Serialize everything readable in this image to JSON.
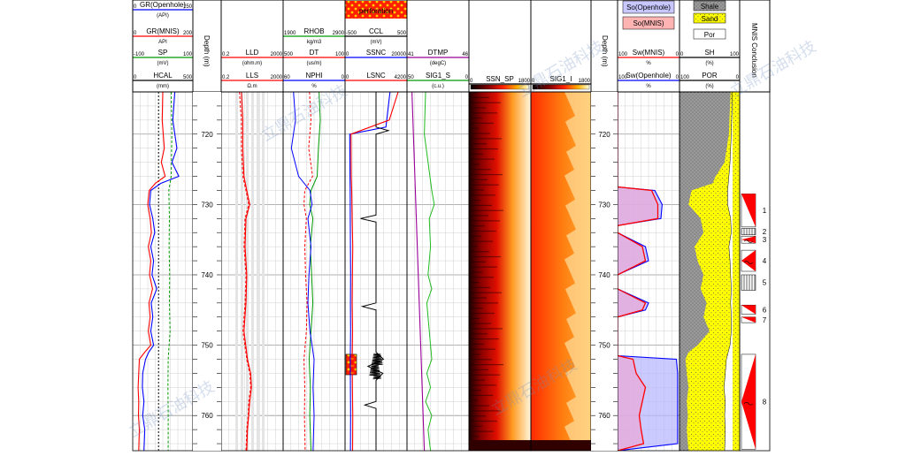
{
  "chart_data": {
    "type": "well-log",
    "depth_unit": "Depth (m)",
    "depth_range": [
      714,
      765
    ],
    "depth_ticks": [
      720,
      730,
      740,
      750,
      760
    ],
    "watermark": "立鼎石油科技",
    "tracks": [
      {
        "id": "t1",
        "headers": [
          {
            "name": "GR(Openhole)",
            "unit": "(API)",
            "min": "0",
            "max": "150",
            "color": "#0000ff"
          },
          {
            "name": "GR(MNIS)",
            "unit": "API",
            "min": "0",
            "max": "200",
            "color": "#ff0000"
          },
          {
            "name": "SP",
            "unit": "(mV)",
            "min": "-100",
            "max": "100",
            "color": "#009900"
          },
          {
            "name": "HCAL",
            "unit": "(mm)",
            "min": "0",
            "max": "500",
            "color": "#000000"
          }
        ]
      },
      {
        "id": "t3",
        "headers": [
          {
            "name": "LLD",
            "unit": "(ohm.m)",
            "min": "0.2",
            "max": "2000",
            "color": "#ff0000"
          },
          {
            "name": "LLS",
            "unit": "Ω.m",
            "min": "0.2",
            "max": "2000",
            "color": "#ff0000"
          }
        ]
      },
      {
        "id": "t4",
        "headers": [
          {
            "name": "RHOB",
            "unit": "kg/m3",
            "min": "1900",
            "max": "2900",
            "color": "#009900"
          },
          {
            "name": "DT",
            "unit": "(us/m)",
            "min": "500",
            "max": "100",
            "color": "#ff0000"
          },
          {
            "name": "NPHI",
            "unit": "%",
            "min": "60",
            "max": "0",
            "color": "#0000ff"
          }
        ]
      },
      {
        "id": "t5",
        "headers": [
          {
            "name": "perforation",
            "unit": "",
            "min": "",
            "max": "",
            "color": "#000000"
          },
          {
            "name": "CCL",
            "unit": "(mV)",
            "min": "-500",
            "max": "500",
            "color": "#000000"
          },
          {
            "name": "SSNC",
            "unit": "",
            "min": "0",
            "max": "20000",
            "color": "#0000ff"
          },
          {
            "name": "LSNC",
            "unit": "",
            "min": "0",
            "max": "4200",
            "color": "#ff0000"
          }
        ]
      },
      {
        "id": "t6",
        "headers": [
          {
            "name": "DTMP",
            "unit": "(degC)",
            "min": "41",
            "max": "46",
            "color": "#990099"
          },
          {
            "name": "SIG1_S",
            "unit": "(c.u.)",
            "min": "50",
            "max": "0",
            "color": "#009900"
          }
        ]
      },
      {
        "id": "t7",
        "headers": [
          {
            "name": "SSN_SP",
            "unit": "",
            "min": "0",
            "max": "1800",
            "color": "#000000"
          }
        ]
      },
      {
        "id": "t8",
        "headers": [
          {
            "name": "SIG1_I",
            "unit": "",
            "min": "0",
            "max": "1800",
            "color": "#000000"
          }
        ]
      },
      {
        "id": "t10",
        "headers": [
          {
            "name": "So(Openhole)",
            "unit": "",
            "min": "",
            "max": "",
            "color": "#c8c8ff"
          },
          {
            "name": "So(MNIS)",
            "unit": "",
            "min": "",
            "max": "",
            "color": "#ffb4b4"
          },
          {
            "name": "Sw(MNIS)",
            "unit": "%",
            "min": "100",
            "max": "0",
            "color": "#ff0000"
          },
          {
            "name": "Sw(Openhole)",
            "unit": "%",
            "min": "100",
            "max": "0",
            "color": "#0000ff"
          }
        ]
      },
      {
        "id": "t11",
        "headers": [
          {
            "name": "Shale",
            "unit": "",
            "min": "",
            "max": "",
            "color": "#808080"
          },
          {
            "name": "Sand",
            "unit": "",
            "min": "",
            "max": "",
            "color": "#ffff00"
          },
          {
            "name": "Por",
            "unit": "",
            "min": "",
            "max": "",
            "color": "#ffffff"
          },
          {
            "name": "SH",
            "unit": "(%)",
            "min": "0",
            "max": "100",
            "color": "#000000"
          },
          {
            "name": "POR",
            "unit": "(%)",
            "min": "100",
            "max": "0",
            "color": "#000000"
          }
        ]
      },
      {
        "id": "t12",
        "headers": [
          {
            "name": "MNIS Conclusion",
            "unit": "",
            "min": "",
            "max": "",
            "color": "#000000"
          }
        ]
      }
    ],
    "conclusion_zones": [
      {
        "label": "1",
        "top": 728.5,
        "bottom": 733.2,
        "type": "oil"
      },
      {
        "label": "2",
        "top": 733.4,
        "bottom": 734.3,
        "type": "dry"
      },
      {
        "label": "3",
        "top": 734.5,
        "bottom": 735.5,
        "type": "oil-water"
      },
      {
        "label": "4",
        "top": 736.5,
        "bottom": 739.5,
        "type": "oil-water"
      },
      {
        "label": "5",
        "top": 740.0,
        "bottom": 742.2,
        "type": "dry"
      },
      {
        "label": "6",
        "top": 744.3,
        "bottom": 745.6,
        "type": "oil"
      },
      {
        "label": "7",
        "top": 746.0,
        "bottom": 746.8,
        "type": "oil"
      },
      {
        "label": "8",
        "top": 751.3,
        "bottom": 764.8,
        "type": "oil-water"
      }
    ],
    "perforation_interval": [
      751.3,
      754.2
    ],
    "curves": {
      "gr_openhole": {
        "depth": [
          714,
          718,
          722,
          724,
          726,
          727,
          728,
          730,
          732,
          734,
          736,
          738,
          740,
          742,
          744,
          746,
          748,
          750,
          751,
          752,
          754,
          756,
          758,
          760,
          762,
          765
        ],
        "value": [
          105,
          100,
          110,
          98,
          115,
          70,
          45,
          42,
          50,
          55,
          45,
          52,
          48,
          60,
          46,
          50,
          45,
          52,
          40,
          32,
          25,
          24,
          28,
          25,
          30,
          28
        ]
      },
      "gr_mnis": {
        "depth": [
          714,
          718,
          722,
          724,
          726,
          727,
          728,
          730,
          732,
          734,
          736,
          738,
          740,
          742,
          744,
          746,
          748,
          750,
          751,
          752,
          754,
          756,
          758,
          760,
          762,
          765
        ],
        "value": [
          100,
          98,
          105,
          95,
          108,
          75,
          55,
          50,
          58,
          62,
          52,
          60,
          56,
          66,
          54,
          58,
          52,
          60,
          40,
          22,
          20,
          18,
          20,
          19,
          22,
          20
        ]
      },
      "sp": {
        "depth": [
          714,
          720,
          726,
          728,
          732,
          736,
          740,
          744,
          748,
          752,
          756,
          760,
          765
        ],
        "value": [
          28,
          30,
          28,
          20,
          22,
          21,
          23,
          22,
          24,
          18,
          17,
          18,
          18
        ]
      },
      "hcal": {
        "depth": [
          714,
          765
        ],
        "value": [
          215,
          215
        ]
      },
      "lld": {
        "depth": [
          714,
          718,
          722,
          726,
          728,
          730,
          732,
          736,
          740,
          744,
          748,
          752,
          754,
          756,
          758,
          760,
          762,
          765
        ],
        "value": [
          4,
          5,
          5,
          6,
          9,
          14,
          8,
          7,
          9,
          8,
          6,
          10,
          16,
          18,
          14,
          12,
          10,
          9
        ]
      },
      "lls": {
        "depth": [
          714,
          718,
          722,
          726,
          728,
          730,
          732,
          736,
          740,
          744,
          748,
          752,
          754,
          756,
          758,
          760,
          762,
          765
        ],
        "value": [
          3,
          4,
          4,
          5,
          8,
          12,
          7,
          6,
          8,
          7,
          5,
          9,
          14,
          16,
          12,
          11,
          9,
          8
        ]
      },
      "rhob": {
        "depth": [
          714,
          718,
          722,
          726,
          728,
          730,
          732,
          736,
          740,
          744,
          748,
          752,
          756,
          760,
          765
        ],
        "value": [
          2480,
          2500,
          2470,
          2450,
          2350,
          2330,
          2380,
          2340,
          2360,
          2380,
          2350,
          2320,
          2340,
          2330,
          2350
        ]
      },
      "dt": {
        "depth": [
          714,
          718,
          722,
          726,
          728,
          730,
          732,
          736,
          740,
          744,
          748,
          752,
          756,
          760,
          765
        ],
        "value": [
          330,
          320,
          335,
          310,
          360,
          365,
          350,
          360,
          355,
          345,
          350,
          365,
          360,
          362,
          358
        ]
      },
      "nphi": {
        "depth": [
          714,
          718,
          722,
          726,
          728,
          730,
          732,
          736,
          740,
          744,
          748,
          752,
          756,
          760,
          765
        ],
        "value": [
          50,
          48,
          52,
          45,
          34,
          32,
          36,
          33,
          35,
          36,
          34,
          30,
          31,
          30,
          31
        ]
      },
      "ccl": {
        "depth": [
          714,
          719,
          719.5,
          720,
          731.5,
          732,
          732.5,
          744,
          744.5,
          745,
          751,
          752,
          753,
          754,
          755,
          758,
          758.5,
          759,
          765
        ],
        "value": [
          0,
          0,
          200,
          0,
          0,
          -250,
          0,
          0,
          -220,
          0,
          0,
          120,
          -130,
          110,
          0,
          0,
          -180,
          0,
          0
        ]
      },
      "ssnc": {
        "depth": [
          714,
          719,
          720,
          726,
          728,
          732,
          736,
          740,
          744,
          748,
          752,
          756,
          760,
          765
        ],
        "value": [
          14500,
          13200,
          1500,
          1600,
          1650,
          1700,
          1750,
          1800,
          1750,
          1800,
          1700,
          1750,
          1800,
          1750
        ]
      },
      "lsnc": {
        "depth": [
          714,
          718,
          720,
          726,
          728,
          732,
          736,
          740,
          744,
          748,
          752,
          756,
          760,
          765
        ],
        "value": [
          3600,
          3000,
          400,
          420,
          450,
          480,
          520,
          500,
          480,
          510,
          480,
          500,
          520,
          510
        ]
      },
      "dtmp": {
        "depth": [
          714,
          765
        ],
        "value": [
          41.4,
          42.4
        ]
      },
      "sig1_s": {
        "depth": [
          714,
          720,
          724,
          728,
          730,
          732,
          736,
          740,
          742,
          744,
          748,
          752,
          754,
          756,
          758,
          760,
          762,
          765
        ],
        "value": [
          35,
          36,
          33,
          30,
          28,
          32,
          31,
          33,
          30,
          34,
          32,
          30,
          34,
          31,
          35,
          30,
          33,
          31
        ]
      },
      "sw_mnis": {
        "depth": [
          714,
          727.5,
          728,
          730,
          732,
          733,
          734,
          736,
          738,
          740,
          742,
          744,
          745,
          746,
          748,
          750,
          751.5,
          752,
          754,
          756,
          758,
          760,
          762,
          764,
          765
        ],
        "value": [
          100,
          100,
          45,
          35,
          35,
          100,
          100,
          60,
          55,
          100,
          100,
          55,
          60,
          100,
          100,
          100,
          100,
          75,
          70,
          55,
          60,
          65,
          62,
          58,
          100
        ]
      },
      "sw_openhole": {
        "depth": [
          714,
          727.5,
          728,
          730,
          732,
          733,
          734,
          736,
          738,
          740,
          742,
          744,
          745,
          746,
          748,
          750,
          751.5,
          752,
          754,
          756,
          758,
          760,
          762,
          764,
          765
        ],
        "value": [
          100,
          100,
          40,
          28,
          30,
          100,
          100,
          55,
          50,
          100,
          100,
          50,
          55,
          100,
          100,
          100,
          100,
          5,
          3,
          3,
          3,
          3,
          3,
          3,
          100
        ]
      },
      "sh": {
        "depth": [
          714,
          720,
          724,
          726,
          727,
          728,
          730,
          732,
          734,
          736,
          738,
          740,
          742,
          744,
          746,
          748,
          750,
          751,
          752,
          754,
          756,
          758,
          760,
          762,
          765
        ],
        "value": [
          85,
          82,
          75,
          60,
          55,
          20,
          15,
          35,
          40,
          25,
          30,
          40,
          35,
          45,
          40,
          50,
          30,
          15,
          10,
          12,
          15,
          12,
          14,
          12,
          15
        ]
      },
      "por": {
        "depth": [
          714,
          720,
          724,
          726,
          728,
          730,
          732,
          734,
          736,
          738,
          740,
          742,
          744,
          746,
          748,
          750,
          752,
          754,
          756,
          758,
          760,
          762,
          765
        ],
        "value": [
          88,
          86,
          84,
          82,
          80,
          80,
          85,
          86,
          82,
          84,
          85,
          86,
          85,
          86,
          86,
          84,
          78,
          76,
          74,
          76,
          75,
          76,
          75
        ]
      }
    }
  }
}
